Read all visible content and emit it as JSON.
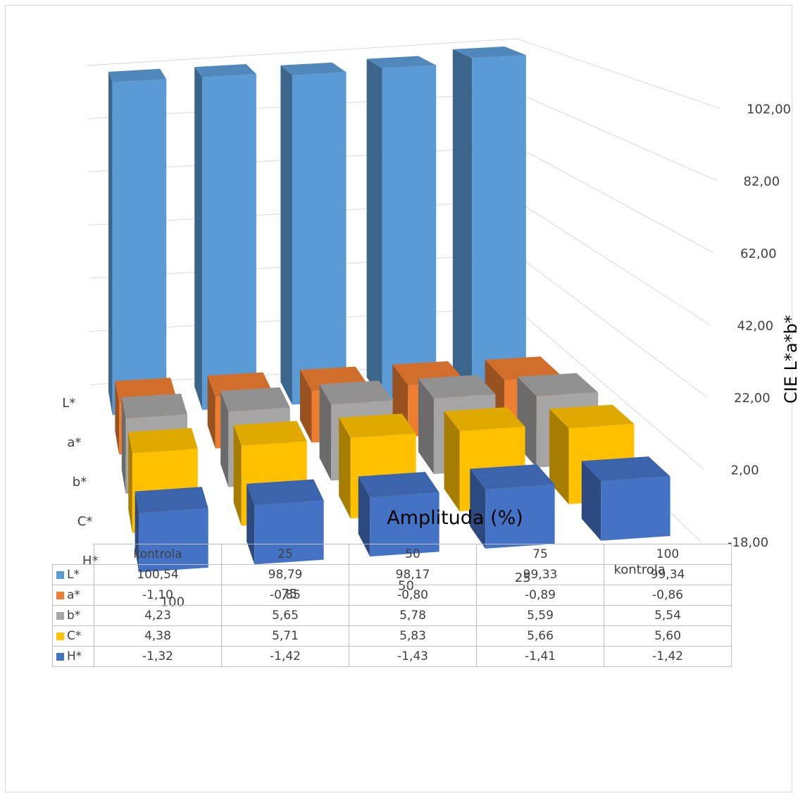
{
  "chart_data": {
    "type": "bar",
    "subtype": "3d-column",
    "categories": [
      "kontrola",
      "25",
      "50",
      "75",
      "100"
    ],
    "series": [
      {
        "name": "L*",
        "values": [
          100.54,
          98.79,
          98.17,
          99.33,
          99.34
        ],
        "color": "#5b9bd5"
      },
      {
        "name": "a*",
        "values": [
          -1.1,
          -0.85,
          -0.8,
          -0.89,
          -0.86
        ],
        "color": "#ed7d31"
      },
      {
        "name": "b*",
        "values": [
          4.23,
          5.65,
          5.78,
          5.59,
          5.54
        ],
        "color": "#a5a5a5"
      },
      {
        "name": "C*",
        "values": [
          4.38,
          5.71,
          5.83,
          5.66,
          5.6
        ],
        "color": "#ffc000"
      },
      {
        "name": "H*",
        "values": [
          -1.32,
          -1.42,
          -1.43,
          -1.41,
          -1.42
        ],
        "color": "#4472c4"
      }
    ],
    "xlabel": "Amplituda (%)",
    "ylabel": "CIE L*a*b*",
    "yticks": [
      "-18,00",
      "2,00",
      "22,00",
      "42,00",
      "62,00",
      "82,00",
      "102,00"
    ],
    "ylim": [
      -18,
      102
    ],
    "grid": true,
    "data_table": true
  }
}
